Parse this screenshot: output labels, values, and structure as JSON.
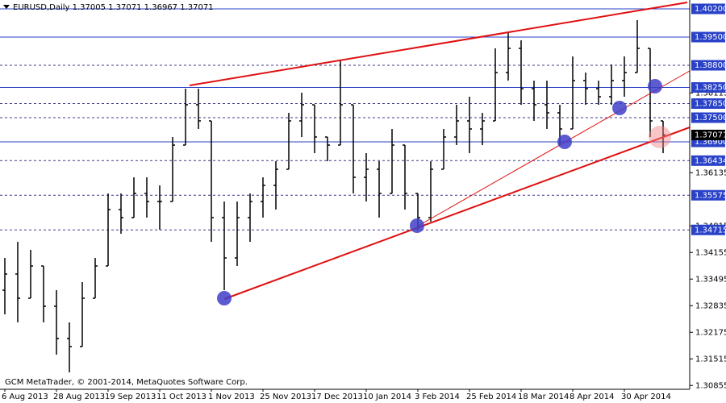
{
  "chart_data": {
    "type": "ohlc",
    "title": "EURUSD,Daily  1.37005 1.37071 1.36967 1.37071",
    "footer": "GCM MetaTrader, © 2001-2014, MetaQuotes Software Corp.",
    "categories": [
      "6 Aug 2013",
      null,
      null,
      null,
      "28 Aug 2013",
      null,
      null,
      null,
      "19 Sep 2013",
      null,
      null,
      null,
      "11 Oct 2013",
      null,
      null,
      null,
      "1 Nov 2013",
      null,
      null,
      null,
      "25 Nov 2013",
      null,
      null,
      null,
      "17 Dec 2013",
      null,
      null,
      null,
      "10 Jan 2014",
      null,
      null,
      null,
      "3 Feb 2014",
      null,
      null,
      null,
      "25 Feb 2014",
      null,
      null,
      null,
      "18 Mar 2014",
      null,
      null,
      null,
      "8 Apr 2014",
      null,
      null,
      null,
      "30 Apr 2014",
      null,
      null,
      null
    ],
    "open": [
      1.3322,
      1.3362,
      1.3302,
      1.3382,
      1.3282,
      1.3202,
      1.3182,
      1.3302,
      1.3382,
      1.3522,
      1.3502,
      1.3562,
      1.3542,
      1.3542,
      1.3682,
      1.3782,
      1.3742,
      1.3502,
      1.3402,
      1.3502,
      1.3542,
      1.3582,
      1.3622,
      1.3742,
      1.3782,
      1.3702,
      1.3682,
      1.3782,
      1.3602,
      1.3622,
      1.3562,
      1.3682,
      1.3562,
      1.3502,
      1.3622,
      1.3702,
      1.3742,
      1.3722,
      1.3742,
      1.3862,
      1.3922,
      1.3822,
      1.3782,
      1.3762,
      1.3722,
      1.3842,
      1.3822,
      1.3802,
      1.3842,
      1.3862,
      1.3922,
      1.3742
    ],
    "high": [
      1.3402,
      1.3442,
      1.3422,
      1.3382,
      1.3322,
      1.3242,
      1.3342,
      1.3402,
      1.3562,
      1.3562,
      1.3602,
      1.3602,
      1.3582,
      1.3702,
      1.3822,
      1.3822,
      1.3742,
      1.3542,
      1.3542,
      1.3562,
      1.3602,
      1.3642,
      1.3762,
      1.3812,
      1.3782,
      1.3702,
      1.3892,
      1.3782,
      1.3662,
      1.3642,
      1.3722,
      1.3682,
      1.3562,
      1.3642,
      1.3722,
      1.3782,
      1.3802,
      1.3762,
      1.3922,
      1.3962,
      1.3942,
      1.3842,
      1.3842,
      1.3782,
      1.3902,
      1.3862,
      1.3842,
      1.3882,
      1.3902,
      1.3992,
      1.3922,
      1.3742
    ],
    "low": [
      1.3262,
      1.3242,
      1.3302,
      1.3242,
      1.3162,
      1.3118,
      1.3182,
      1.3302,
      1.3382,
      1.3462,
      1.3502,
      1.3502,
      1.3472,
      1.3542,
      1.3682,
      1.3722,
      1.3442,
      1.3322,
      1.3382,
      1.3442,
      1.3502,
      1.3522,
      1.3622,
      1.3702,
      1.3662,
      1.3642,
      1.3682,
      1.3562,
      1.3542,
      1.3502,
      1.3562,
      1.3522,
      1.3472,
      1.3492,
      1.3622,
      1.3682,
      1.3662,
      1.3682,
      1.3742,
      1.3842,
      1.3782,
      1.3742,
      1.3722,
      1.3682,
      1.3722,
      1.3782,
      1.3782,
      1.3782,
      1.3802,
      1.3862,
      1.3702,
      1.3662
    ],
    "close": [
      1.3362,
      1.3302,
      1.3382,
      1.3282,
      1.3202,
      1.3182,
      1.3302,
      1.3382,
      1.3522,
      1.3502,
      1.3562,
      1.3542,
      1.3542,
      1.3682,
      1.3782,
      1.3742,
      1.3502,
      1.3402,
      1.3502,
      1.3542,
      1.3582,
      1.3622,
      1.3742,
      1.3782,
      1.3702,
      1.3682,
      1.3782,
      1.3602,
      1.3622,
      1.3562,
      1.3682,
      1.3562,
      1.3502,
      1.3622,
      1.3702,
      1.3742,
      1.3722,
      1.3742,
      1.3862,
      1.3922,
      1.3822,
      1.3782,
      1.3762,
      1.3722,
      1.3842,
      1.3822,
      1.3802,
      1.3842,
      1.3862,
      1.3922,
      1.3742,
      1.37071
    ],
    "color": "#000000",
    "ylim": [
      1.3076,
      1.4042
    ],
    "yticks": [
      1.30855,
      1.31515,
      1.32175,
      1.32835,
      1.33495,
      1.34155,
      1.34815,
      1.36135,
      1.38115
    ],
    "levels": [
      {
        "value": 1.402,
        "label": "1.40200",
        "solid": true
      },
      {
        "value": 1.395,
        "label": "1.39500",
        "solid": true
      },
      {
        "value": 1.388,
        "label": "1.38800",
        "solid": false
      },
      {
        "value": 1.3825,
        "label": "1.38250",
        "solid": true
      },
      {
        "value": 1.3785,
        "label": "1.37850",
        "solid": false
      },
      {
        "value": 1.375,
        "label": "1.37500",
        "solid": false
      },
      {
        "value": 1.369,
        "label": "1.36900",
        "solid": true
      },
      {
        "value": 1.36434,
        "label": "1.36434",
        "solid": false
      },
      {
        "value": 1.35575,
        "label": "1.35575",
        "solid": false
      },
      {
        "value": 1.34715,
        "label": "1.34715",
        "solid": false
      }
    ],
    "level_color": "#2942c8"
  }
}
